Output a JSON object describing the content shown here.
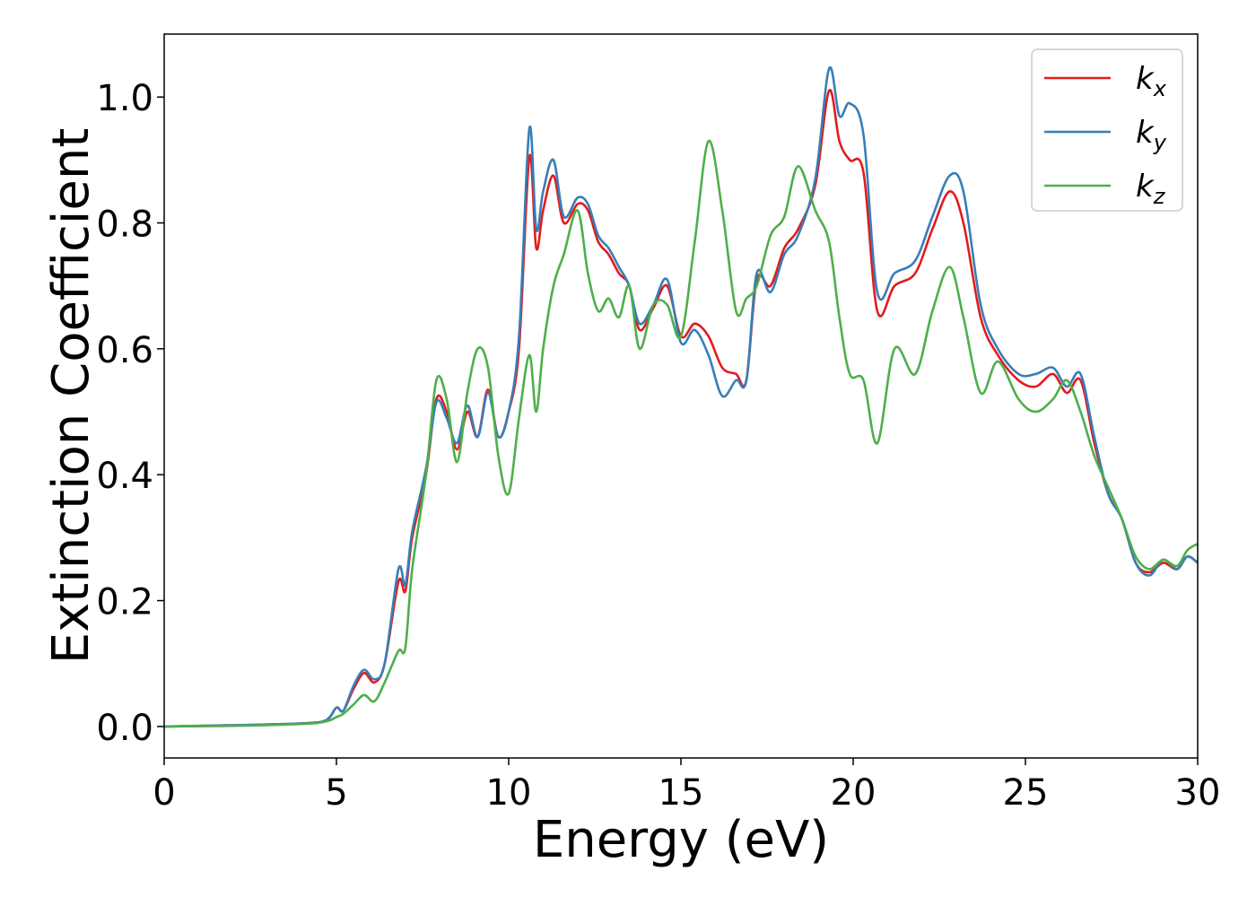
{
  "chart_data": {
    "type": "line",
    "xlabel": "Energy (eV)",
    "ylabel": "Extinction Coefficient",
    "xlim": [
      0,
      30
    ],
    "ylim": [
      -0.05,
      1.1
    ],
    "xticks": [
      "0",
      "5",
      "10",
      "15",
      "20",
      "25",
      "30"
    ],
    "yticks": [
      "0.0",
      "0.2",
      "0.4",
      "0.6",
      "0.8",
      "1.0"
    ],
    "grid": false,
    "legend_position": "top-right",
    "series": [
      {
        "name": "k",
        "subscript": "x",
        "color": "#e41a1c",
        "x": [
          0,
          2,
          4,
          4.7,
          5.0,
          5.2,
          5.5,
          5.8,
          6.1,
          6.4,
          6.8,
          7.0,
          7.2,
          7.6,
          7.9,
          8.2,
          8.5,
          8.8,
          9.1,
          9.4,
          9.7,
          10.0,
          10.3,
          10.6,
          10.8,
          11.0,
          11.3,
          11.6,
          12.0,
          12.3,
          12.6,
          12.9,
          13.2,
          13.5,
          13.8,
          14.2,
          14.6,
          15.0,
          15.4,
          15.8,
          16.2,
          16.6,
          16.9,
          17.2,
          17.6,
          18.0,
          18.4,
          18.9,
          19.3,
          19.6,
          19.9,
          20.3,
          20.7,
          21.2,
          21.8,
          22.3,
          22.8,
          23.2,
          23.7,
          24.2,
          24.8,
          25.3,
          25.8,
          26.2,
          26.6,
          27.0,
          27.4,
          27.8,
          28.2,
          28.6,
          29.0,
          29.4,
          29.7,
          30.0
        ],
        "values": [
          0.0,
          0.002,
          0.005,
          0.01,
          0.03,
          0.025,
          0.06,
          0.085,
          0.07,
          0.1,
          0.23,
          0.215,
          0.3,
          0.4,
          0.52,
          0.5,
          0.44,
          0.5,
          0.46,
          0.535,
          0.46,
          0.5,
          0.6,
          0.905,
          0.76,
          0.82,
          0.875,
          0.8,
          0.83,
          0.82,
          0.77,
          0.75,
          0.72,
          0.7,
          0.63,
          0.665,
          0.7,
          0.62,
          0.64,
          0.62,
          0.57,
          0.56,
          0.55,
          0.71,
          0.7,
          0.76,
          0.79,
          0.86,
          1.01,
          0.93,
          0.9,
          0.88,
          0.66,
          0.7,
          0.72,
          0.79,
          0.85,
          0.8,
          0.65,
          0.59,
          0.55,
          0.54,
          0.56,
          0.53,
          0.55,
          0.45,
          0.37,
          0.33,
          0.26,
          0.245,
          0.26,
          0.25,
          0.27,
          0.26
        ]
      },
      {
        "name": "k",
        "subscript": "y",
        "color": "#377eb8",
        "x": [
          0,
          2,
          4,
          4.7,
          5.0,
          5.2,
          5.5,
          5.8,
          6.1,
          6.4,
          6.8,
          7.0,
          7.2,
          7.6,
          7.9,
          8.2,
          8.5,
          8.8,
          9.1,
          9.4,
          9.7,
          10.0,
          10.3,
          10.6,
          10.8,
          11.0,
          11.3,
          11.6,
          12.0,
          12.3,
          12.6,
          12.9,
          13.2,
          13.5,
          13.8,
          14.2,
          14.6,
          15.0,
          15.4,
          15.8,
          16.2,
          16.6,
          16.9,
          17.2,
          17.6,
          18.0,
          18.4,
          18.9,
          19.3,
          19.6,
          19.9,
          20.3,
          20.7,
          21.2,
          21.8,
          22.3,
          22.8,
          23.2,
          23.7,
          24.2,
          24.8,
          25.3,
          25.8,
          26.2,
          26.6,
          27.0,
          27.4,
          27.8,
          28.2,
          28.6,
          29.0,
          29.4,
          29.7,
          30.0
        ],
        "values": [
          0.0,
          0.002,
          0.005,
          0.01,
          0.03,
          0.025,
          0.065,
          0.09,
          0.075,
          0.1,
          0.25,
          0.225,
          0.31,
          0.41,
          0.515,
          0.49,
          0.45,
          0.51,
          0.46,
          0.53,
          0.46,
          0.5,
          0.62,
          0.95,
          0.79,
          0.85,
          0.9,
          0.81,
          0.84,
          0.83,
          0.78,
          0.76,
          0.73,
          0.7,
          0.64,
          0.67,
          0.71,
          0.61,
          0.63,
          0.59,
          0.525,
          0.55,
          0.55,
          0.72,
          0.69,
          0.75,
          0.78,
          0.87,
          1.045,
          0.97,
          0.99,
          0.94,
          0.69,
          0.72,
          0.74,
          0.81,
          0.875,
          0.85,
          0.67,
          0.6,
          0.56,
          0.56,
          0.57,
          0.54,
          0.56,
          0.46,
          0.37,
          0.33,
          0.26,
          0.24,
          0.265,
          0.25,
          0.27,
          0.26
        ]
      },
      {
        "name": "k",
        "subscript": "z",
        "color": "#4daf4a",
        "x": [
          0,
          2,
          4,
          4.7,
          5.0,
          5.2,
          5.5,
          5.8,
          6.1,
          6.4,
          6.8,
          7.0,
          7.2,
          7.6,
          7.9,
          8.2,
          8.5,
          8.8,
          9.1,
          9.4,
          9.7,
          10.0,
          10.3,
          10.6,
          10.8,
          11.0,
          11.3,
          11.6,
          12.0,
          12.3,
          12.6,
          12.9,
          13.2,
          13.5,
          13.8,
          14.2,
          14.6,
          15.0,
          15.4,
          15.8,
          16.2,
          16.6,
          16.9,
          17.2,
          17.6,
          18.0,
          18.4,
          18.9,
          19.3,
          19.6,
          19.9,
          20.3,
          20.7,
          21.2,
          21.8,
          22.3,
          22.8,
          23.2,
          23.7,
          24.2,
          24.8,
          25.3,
          25.8,
          26.2,
          26.6,
          27.0,
          27.4,
          27.8,
          28.2,
          28.6,
          29.0,
          29.4,
          29.7,
          30.0
        ],
        "values": [
          0.0,
          0.001,
          0.004,
          0.008,
          0.015,
          0.02,
          0.035,
          0.05,
          0.04,
          0.07,
          0.12,
          0.125,
          0.25,
          0.4,
          0.55,
          0.52,
          0.42,
          0.53,
          0.6,
          0.57,
          0.43,
          0.37,
          0.49,
          0.59,
          0.5,
          0.6,
          0.7,
          0.75,
          0.82,
          0.72,
          0.66,
          0.68,
          0.65,
          0.7,
          0.6,
          0.67,
          0.67,
          0.62,
          0.77,
          0.93,
          0.82,
          0.66,
          0.68,
          0.7,
          0.78,
          0.81,
          0.89,
          0.82,
          0.77,
          0.65,
          0.56,
          0.55,
          0.45,
          0.6,
          0.56,
          0.66,
          0.73,
          0.65,
          0.53,
          0.58,
          0.52,
          0.5,
          0.52,
          0.55,
          0.5,
          0.43,
          0.38,
          0.33,
          0.27,
          0.25,
          0.265,
          0.255,
          0.28,
          0.29
        ]
      }
    ]
  }
}
